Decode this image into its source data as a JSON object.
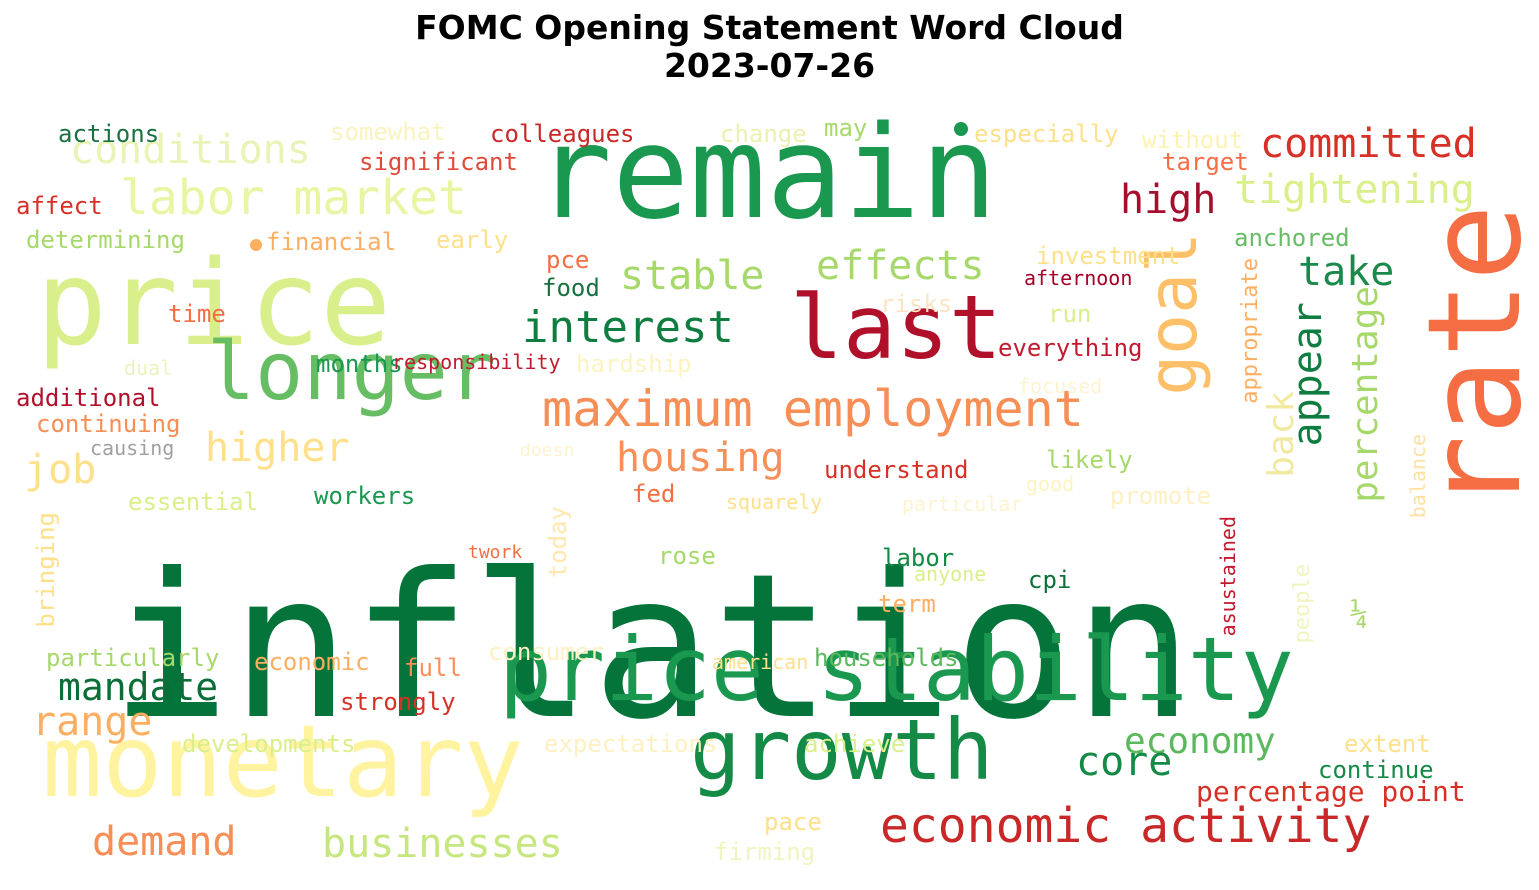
{
  "title_line1": "FOMC Opening Statement Word Cloud",
  "title_line2": "2023-07-26",
  "words": [
    {
      "text": "inflation",
      "color": "#04743a",
      "size": 200
    },
    {
      "text": "remain",
      "color": "#1a9850",
      "size": 128
    },
    {
      "text": "rate",
      "color": "#f46d43",
      "size": 128,
      "vertical": true
    },
    {
      "text": "price",
      "color": "#d9ef8b",
      "size": 118
    },
    {
      "text": "monetary",
      "color": "#fff3a0",
      "size": 100
    },
    {
      "text": "price stability",
      "color": "#1a9850",
      "size": 88
    },
    {
      "text": "last",
      "color": "#b0102a",
      "size": 88
    },
    {
      "text": "growth",
      "color": "#138a45",
      "size": 84
    },
    {
      "text": "longer",
      "color": "#66bd63",
      "size": 80
    },
    {
      "text": "goal",
      "color": "#fdc068",
      "size": 68,
      "vertical": true
    },
    {
      "text": "maximum employment",
      "color": "#f68e56",
      "size": 50
    },
    {
      "text": "labor market",
      "color": "#eaf5a4",
      "size": 48
    },
    {
      "text": "economic activity",
      "color": "#c92828",
      "size": 48
    },
    {
      "text": "conditions",
      "color": "#eaf3b5",
      "size": 40
    },
    {
      "text": "committed",
      "color": "#d73027",
      "size": 40
    },
    {
      "text": "tightening",
      "color": "#d9ef8b",
      "size": 40
    },
    {
      "text": "interest",
      "color": "#0f7d40",
      "size": 44
    },
    {
      "text": "effects",
      "color": "#a6d96a",
      "size": 40
    },
    {
      "text": "stable",
      "color": "#a6d96a",
      "size": 40
    },
    {
      "text": "high",
      "color": "#a50f2d",
      "size": 40
    },
    {
      "text": "take",
      "color": "#1a8a4b",
      "size": 40
    },
    {
      "text": "housing",
      "color": "#f88f58",
      "size": 40
    },
    {
      "text": "higher",
      "color": "#fee08b",
      "size": 40
    },
    {
      "text": "mandate",
      "color": "#0b6e39",
      "size": 38
    },
    {
      "text": "range",
      "color": "#fdae61",
      "size": 40
    },
    {
      "text": "economy",
      "color": "#5bb85c",
      "size": 36
    },
    {
      "text": "core",
      "color": "#138a45",
      "size": 40
    },
    {
      "text": "demand",
      "color": "#f68e56",
      "size": 40
    },
    {
      "text": "businesses",
      "color": "#c6e77f",
      "size": 40
    },
    {
      "text": "appear",
      "color": "#0f7d40",
      "size": 40,
      "vertical": true
    },
    {
      "text": "back",
      "color": "#f2e9a0",
      "size": 36,
      "vertical": true
    },
    {
      "text": "percentage",
      "color": "#a6d96a",
      "size": 36,
      "vertical": true
    },
    {
      "text": "job",
      "color": "#fee08b",
      "size": 40
    },
    {
      "text": "percentage point",
      "color": "#d73027",
      "size": 28
    },
    {
      "text": "understand",
      "color": "#d73027",
      "size": 24
    },
    {
      "text": "everything",
      "color": "#c21b2f",
      "size": 24
    },
    {
      "text": "actions",
      "color": "#1a7040",
      "size": 24
    },
    {
      "text": "somewhat",
      "color": "#f9f3c0",
      "size": 24
    },
    {
      "text": "colleagues",
      "color": "#c92828",
      "size": 24
    },
    {
      "text": "change",
      "color": "#edf0b0",
      "size": 24
    },
    {
      "text": "may",
      "color": "#a6d96a",
      "size": 24
    },
    {
      "text": "especially",
      "color": "#fee08b",
      "size": 24
    },
    {
      "text": "without",
      "color": "#fdf3b0",
      "size": 24
    },
    {
      "text": "significant",
      "color": "#e04a3a",
      "size": 24
    },
    {
      "text": "target",
      "color": "#f46d43",
      "size": 24
    },
    {
      "text": "affect",
      "color": "#d73027",
      "size": 24
    },
    {
      "text": "determining",
      "color": "#a6d96a",
      "size": 24
    },
    {
      "text": "financial",
      "color": "#fdae61",
      "size": 24
    },
    {
      "text": "early",
      "color": "#fee08b",
      "size": 24
    },
    {
      "text": "anchored",
      "color": "#66bd63",
      "size": 24
    },
    {
      "text": "investment",
      "color": "#fee08b",
      "size": 24
    },
    {
      "text": "afternoon",
      "color": "#a50026",
      "size": 20
    },
    {
      "text": "pce",
      "color": "#f46d43",
      "size": 24
    },
    {
      "text": "food",
      "color": "#1a7040",
      "size": 24
    },
    {
      "text": "risks",
      "color": "#fde4c4",
      "size": 24
    },
    {
      "text": "run",
      "color": "#d9ef8b",
      "size": 24
    },
    {
      "text": "time",
      "color": "#f46d43",
      "size": 24
    },
    {
      "text": "months",
      "color": "#1a9850",
      "size": 24
    },
    {
      "text": "responsibility",
      "color": "#c21b2f",
      "size": 20
    },
    {
      "text": "hardship",
      "color": "#fdf3c0",
      "size": 24
    },
    {
      "text": "dual",
      "color": "#eaf3c0",
      "size": 20
    },
    {
      "text": "additional",
      "color": "#b0102a",
      "size": 24
    },
    {
      "text": "focused",
      "color": "#fdf3d0",
      "size": 20
    },
    {
      "text": "appropriate",
      "color": "#fdae61",
      "size": 22,
      "vertical": true
    },
    {
      "text": "continuing",
      "color": "#f68e56",
      "size": 24
    },
    {
      "text": "causing",
      "color": "#a0a0a0",
      "size": 20
    },
    {
      "text": "doesn",
      "color": "#fdf3d0",
      "size": 18
    },
    {
      "text": "likely",
      "color": "#a6d96a",
      "size": 24
    },
    {
      "text": "good",
      "color": "#fef3c0",
      "size": 20
    },
    {
      "text": "promote",
      "color": "#fef0c0",
      "size": 24
    },
    {
      "text": "balance",
      "color": "#fee0a0",
      "size": 20,
      "vertical": true
    },
    {
      "text": "essential",
      "color": "#d9ef8b",
      "size": 24
    },
    {
      "text": "workers",
      "color": "#1a9850",
      "size": 24
    },
    {
      "text": "fed",
      "color": "#f46d43",
      "size": 24
    },
    {
      "text": "squarely",
      "color": "#fee08b",
      "size": 20
    },
    {
      "text": "particular",
      "color": "#fdf3d0",
      "size": 20
    },
    {
      "text": "bringing",
      "color": "#fee08b",
      "size": 24,
      "vertical": true
    },
    {
      "text": "twork",
      "color": "#f46d43",
      "size": 18
    },
    {
      "text": "today",
      "color": "#fee8b0",
      "size": 24,
      "vertical": true
    },
    {
      "text": "rose",
      "color": "#a6d96a",
      "size": 24
    },
    {
      "text": "labor",
      "color": "#138a45",
      "size": 24
    },
    {
      "text": "anyone",
      "color": "#d9ef8b",
      "size": 20
    },
    {
      "text": "cpi",
      "color": "#0f6e3a",
      "size": 24
    },
    {
      "text": "asustained",
      "color": "#c21b2f",
      "size": 20,
      "vertical": true
    },
    {
      "text": "people",
      "color": "#f0f5c0",
      "size": 22,
      "vertical": true
    },
    {
      "text": "term",
      "color": "#fdae61",
      "size": 24
    },
    {
      "text": "¼",
      "color": "#a6d96a",
      "size": 30
    },
    {
      "text": "particularly",
      "color": "#a6d96a",
      "size": 24
    },
    {
      "text": "consumer",
      "color": "#fef0c0",
      "size": 24
    },
    {
      "text": "economic",
      "color": "#fdae61",
      "size": 24
    },
    {
      "text": "american",
      "color": "#fee08b",
      "size": 20
    },
    {
      "text": "households",
      "color": "#5bb85c",
      "size": 24
    },
    {
      "text": "full",
      "color": "#f88f58",
      "size": 24
    },
    {
      "text": "strongly",
      "color": "#d73027",
      "size": 24
    },
    {
      "text": "developments",
      "color": "#d9ef8b",
      "size": 24
    },
    {
      "text": "expectations",
      "color": "#fef0c0",
      "size": 24
    },
    {
      "text": "achieve",
      "color": "#d9ef8b",
      "size": 24
    },
    {
      "text": "extent",
      "color": "#fee08b",
      "size": 24
    },
    {
      "text": "continue",
      "color": "#138a45",
      "size": 24
    },
    {
      "text": "pace",
      "color": "#fee08b",
      "size": 24
    },
    {
      "text": "firming",
      "color": "#f0f5c0",
      "size": 24
    }
  ]
}
